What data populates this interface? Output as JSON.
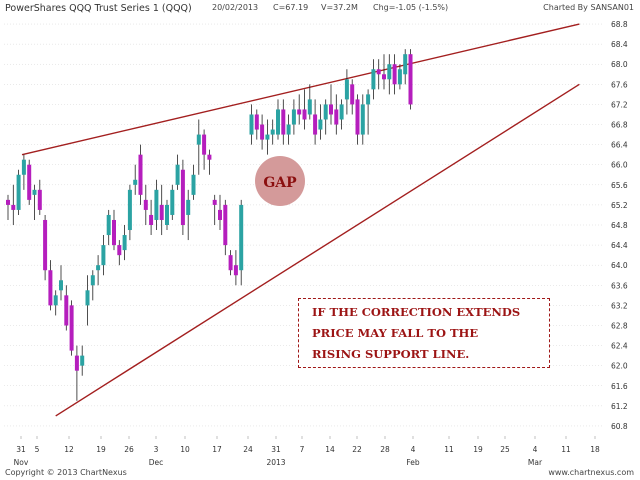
{
  "header": {
    "title": "PowerShares QQQ Trust Series 1 (QQQ)",
    "date": "20/02/2013",
    "close": "C=67.19",
    "volume": "V=37.2M",
    "change": "Chg=-1.05 (-1.5%)",
    "charted_by": "Charted By SANSAN01"
  },
  "footer": {
    "copyright": "Copyright © 2013 ChartNexus",
    "website": "www.chartnexus.com"
  },
  "annotations": {
    "gap_label": "GAP",
    "note_lines": [
      "IF THE CORRECTION EXTENDS",
      "PRICE MAY FALL TO THE",
      "RISING SUPPORT LINE."
    ]
  },
  "colors": {
    "up_candle": "#2ba3a3",
    "down_candle": "#b51ebd",
    "trendline": "#a31f1f",
    "gap_circle": "#d49a9a",
    "grid": "#d4d4d4"
  },
  "chart_data": {
    "type": "candlestick",
    "ylim": [
      60.6,
      69.0
    ],
    "y_ticks": [
      "60.8",
      "61.2",
      "61.6",
      "62.0",
      "62.4",
      "62.8",
      "63.2",
      "63.6",
      "64.0",
      "64.4",
      "64.8",
      "65.2",
      "65.6",
      "66.0",
      "66.4",
      "66.8",
      "67.2",
      "67.6",
      "68.0",
      "68.4",
      "68.8"
    ],
    "x_ticks": [
      {
        "major": "31",
        "minor": "Nov"
      },
      {
        "major": "5",
        "minor": ""
      },
      {
        "major": "12",
        "minor": ""
      },
      {
        "major": "19",
        "minor": ""
      },
      {
        "major": "26",
        "minor": ""
      },
      {
        "major": "3",
        "minor": "Dec"
      },
      {
        "major": "10",
        "minor": ""
      },
      {
        "major": "17",
        "minor": ""
      },
      {
        "major": "24",
        "minor": ""
      },
      {
        "major": "31",
        "minor": "2013"
      },
      {
        "major": "7",
        "minor": ""
      },
      {
        "major": "14",
        "minor": ""
      },
      {
        "major": "22",
        "minor": ""
      },
      {
        "major": "28",
        "minor": ""
      },
      {
        "major": "4",
        "minor": "Feb"
      },
      {
        "major": "11",
        "minor": ""
      },
      {
        "major": "19",
        "minor": ""
      },
      {
        "major": "25",
        "minor": ""
      },
      {
        "major": "4",
        "minor": "Mar"
      },
      {
        "major": "11",
        "minor": ""
      },
      {
        "major": "18",
        "minor": ""
      }
    ],
    "candles": [
      [
        65.3,
        65.4,
        64.9,
        65.2
      ],
      [
        65.2,
        65.6,
        64.8,
        65.1
      ],
      [
        65.1,
        65.9,
        65.0,
        65.8
      ],
      [
        65.8,
        66.2,
        65.5,
        66.1
      ],
      [
        66.0,
        66.1,
        65.2,
        65.3
      ],
      [
        65.4,
        65.6,
        64.9,
        65.5
      ],
      [
        65.5,
        65.7,
        65.0,
        65.1
      ],
      [
        64.9,
        65.0,
        63.7,
        63.9
      ],
      [
        63.9,
        64.1,
        63.1,
        63.2
      ],
      [
        63.2,
        63.5,
        63.0,
        63.4
      ],
      [
        63.5,
        64.0,
        63.3,
        63.7
      ],
      [
        63.4,
        63.6,
        62.7,
        62.8
      ],
      [
        63.2,
        63.3,
        62.2,
        62.3
      ],
      [
        62.2,
        62.4,
        61.3,
        61.9
      ],
      [
        62.0,
        62.4,
        61.8,
        62.2
      ],
      [
        63.2,
        63.8,
        62.8,
        63.5
      ],
      [
        63.6,
        63.9,
        63.3,
        63.8
      ],
      [
        63.9,
        64.2,
        63.6,
        64.0
      ],
      [
        64.0,
        64.6,
        63.8,
        64.4
      ],
      [
        64.6,
        65.1,
        64.4,
        65.0
      ],
      [
        64.9,
        65.1,
        64.3,
        64.4
      ],
      [
        64.4,
        64.5,
        64.0,
        64.2
      ],
      [
        64.3,
        64.8,
        64.1,
        64.6
      ],
      [
        64.7,
        65.6,
        64.5,
        65.5
      ],
      [
        65.6,
        66.0,
        65.4,
        65.7
      ],
      [
        66.2,
        66.4,
        65.2,
        65.4
      ],
      [
        65.3,
        65.6,
        64.8,
        65.1
      ],
      [
        65.0,
        65.3,
        64.6,
        64.8
      ],
      [
        64.9,
        65.7,
        64.7,
        65.5
      ],
      [
        65.2,
        65.6,
        64.6,
        64.9
      ],
      [
        64.8,
        65.3,
        64.7,
        65.2
      ],
      [
        65.0,
        65.6,
        64.9,
        65.5
      ],
      [
        65.6,
        66.2,
        65.5,
        66.0
      ],
      [
        65.9,
        66.1,
        64.6,
        64.8
      ],
      [
        65.0,
        65.5,
        64.5,
        65.3
      ],
      [
        65.4,
        66.0,
        65.3,
        65.8
      ],
      [
        66.4,
        66.9,
        65.8,
        66.6
      ],
      [
        66.6,
        66.7,
        65.9,
        66.2
      ],
      [
        66.2,
        66.3,
        65.8,
        66.1
      ],
      [
        65.3,
        65.4,
        64.8,
        65.2
      ],
      [
        65.1,
        65.4,
        64.7,
        64.9
      ],
      [
        65.2,
        65.3,
        64.2,
        64.4
      ],
      [
        64.2,
        64.3,
        63.8,
        63.9
      ],
      [
        64.0,
        64.3,
        63.6,
        63.8
      ],
      [
        63.9,
        65.3,
        63.6,
        65.2
      ],
      [
        66.6,
        67.2,
        66.4,
        67.0
      ],
      [
        67.0,
        67.1,
        66.5,
        66.7
      ],
      [
        66.8,
        67.0,
        66.3,
        66.5
      ],
      [
        66.5,
        66.9,
        66.2,
        66.6
      ],
      [
        66.6,
        66.9,
        66.4,
        66.7
      ],
      [
        66.6,
        67.3,
        66.5,
        67.1
      ],
      [
        67.1,
        67.3,
        66.4,
        66.6
      ],
      [
        66.6,
        67.0,
        66.4,
        66.8
      ],
      [
        66.8,
        67.3,
        66.6,
        67.1
      ],
      [
        67.1,
        67.4,
        66.8,
        67.0
      ],
      [
        67.1,
        67.5,
        66.7,
        66.9
      ],
      [
        67.0,
        67.6,
        66.9,
        67.3
      ],
      [
        67.0,
        67.3,
        66.4,
        66.6
      ],
      [
        66.7,
        67.2,
        66.5,
        66.9
      ],
      [
        66.9,
        67.3,
        66.6,
        67.2
      ],
      [
        67.2,
        67.6,
        66.8,
        67.0
      ],
      [
        67.1,
        67.4,
        66.6,
        66.8
      ],
      [
        66.9,
        67.3,
        66.7,
        67.2
      ],
      [
        67.3,
        67.9,
        67.0,
        67.7
      ],
      [
        67.6,
        67.7,
        67.0,
        67.2
      ],
      [
        67.3,
        67.4,
        66.4,
        66.6
      ],
      [
        66.6,
        67.4,
        66.4,
        67.2
      ],
      [
        67.2,
        67.5,
        66.6,
        67.4
      ],
      [
        67.5,
        68.1,
        67.3,
        67.9
      ],
      [
        67.9,
        68.1,
        67.5,
        67.8
      ],
      [
        67.8,
        68.2,
        67.5,
        67.7
      ],
      [
        67.7,
        68.2,
        67.4,
        68.0
      ],
      [
        68.0,
        68.2,
        67.4,
        67.6
      ],
      [
        67.6,
        68.0,
        67.5,
        67.9
      ],
      [
        67.8,
        68.3,
        67.6,
        68.2
      ],
      [
        68.2,
        68.3,
        67.1,
        67.2
      ]
    ],
    "trendlines": {
      "resistance": [
        [
          0,
          66.2
        ],
        [
          88,
          68.8
        ]
      ],
      "support": [
        [
          9,
          61.0
        ],
        [
          88,
          67.6
        ]
      ]
    }
  }
}
